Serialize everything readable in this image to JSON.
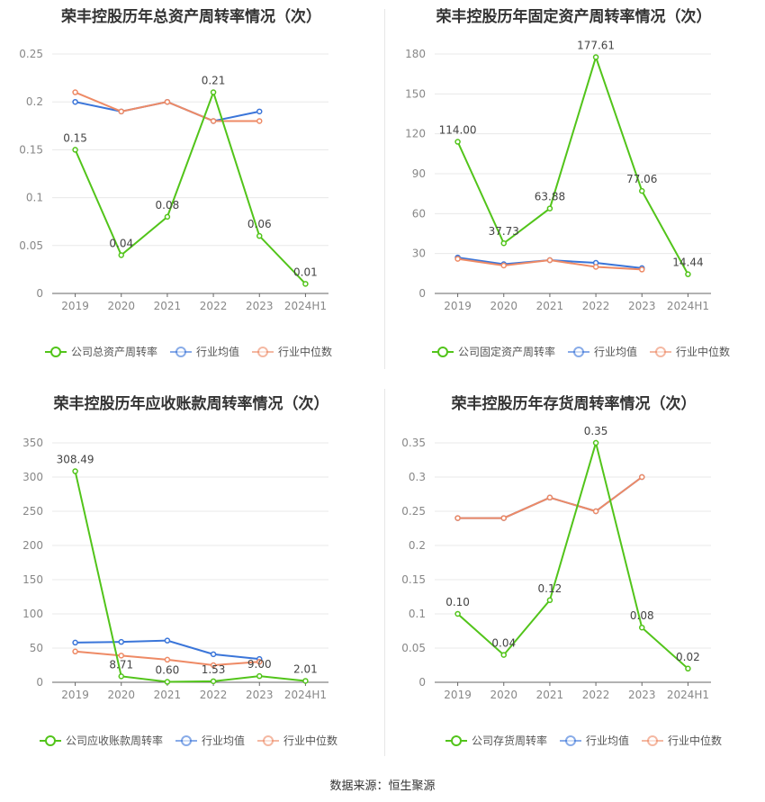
{
  "source_label": "数据来源：恒生聚源",
  "colors": {
    "company": "#52c41a",
    "avg": "#3a75d9",
    "median": "#ee8a65",
    "grid": "#e8e8e8",
    "axis": "#888888"
  },
  "chart_data": [
    {
      "type": "line",
      "title": "荣丰控股历年总资产周转率情况（次）",
      "categories": [
        "2019",
        "2020",
        "2021",
        "2022",
        "2023",
        "2024H1"
      ],
      "yticks": [
        "0",
        "0.05",
        "0.1",
        "0.15",
        "0.2",
        "0.25"
      ],
      "ylim": [
        0,
        0.25
      ],
      "series": [
        {
          "name": "公司总资产周转率",
          "values": [
            0.15,
            0.04,
            0.08,
            0.21,
            0.06,
            0.01
          ],
          "labels": [
            "0.15",
            "0.04",
            "0.08",
            "0.21",
            "0.06",
            "0.01"
          ]
        },
        {
          "name": "行业均值",
          "values": [
            0.2,
            0.19,
            0.2,
            0.18,
            0.19,
            null
          ]
        },
        {
          "name": "行业中位数",
          "values": [
            0.21,
            0.19,
            0.2,
            0.18,
            0.18,
            null
          ]
        }
      ],
      "legend": "bottom"
    },
    {
      "type": "line",
      "title": "荣丰控股历年固定资产周转率情况（次）",
      "categories": [
        "2019",
        "2020",
        "2021",
        "2022",
        "2023",
        "2024H1"
      ],
      "yticks": [
        "0",
        "30",
        "60",
        "90",
        "120",
        "150",
        "180"
      ],
      "ylim": [
        0,
        180
      ],
      "series": [
        {
          "name": "公司固定资产周转率",
          "values": [
            114.0,
            37.73,
            63.88,
            177.61,
            77.06,
            14.44
          ],
          "labels": [
            "114.00",
            "37.73",
            "63.88",
            "177.61",
            "77.06",
            "14.44"
          ]
        },
        {
          "name": "行业均值",
          "values": [
            27,
            22,
            25,
            23,
            19,
            null
          ]
        },
        {
          "name": "行业中位数",
          "values": [
            26,
            21,
            25,
            20,
            18,
            null
          ]
        }
      ],
      "legend": "bottom"
    },
    {
      "type": "line",
      "title": "荣丰控股历年应收账款周转率情况（次）",
      "categories": [
        "2019",
        "2020",
        "2021",
        "2022",
        "2023",
        "2024H1"
      ],
      "yticks": [
        "0",
        "50",
        "100",
        "150",
        "200",
        "250",
        "300",
        "350"
      ],
      "ylim": [
        0,
        350
      ],
      "series": [
        {
          "name": "公司应收账款周转率",
          "values": [
            308.49,
            8.71,
            0.6,
            1.53,
            9.0,
            2.01
          ],
          "labels": [
            "308.49",
            "8.71",
            "0.60",
            "1.53",
            "9.00",
            "2.01"
          ]
        },
        {
          "name": "行业均值",
          "values": [
            58,
            59,
            61,
            41,
            34,
            null
          ]
        },
        {
          "name": "行业中位数",
          "values": [
            45,
            39,
            33,
            25,
            30,
            null
          ]
        }
      ],
      "legend": "bottom"
    },
    {
      "type": "line",
      "title": "荣丰控股历年存货周转率情况（次）",
      "categories": [
        "2019",
        "2020",
        "2021",
        "2022",
        "2023",
        "2024H1"
      ],
      "yticks": [
        "0",
        "0.05",
        "0.1",
        "0.15",
        "0.2",
        "0.25",
        "0.3",
        "0.35"
      ],
      "ylim": [
        0,
        0.35
      ],
      "series": [
        {
          "name": "公司存货周转率",
          "values": [
            0.1,
            0.04,
            0.12,
            0.35,
            0.08,
            0.02
          ],
          "labels": [
            "0.10",
            "0.04",
            "0.12",
            "0.35",
            "0.08",
            "0.02"
          ]
        },
        {
          "name": "行业均值",
          "values": [
            0.24,
            0.24,
            0.27,
            0.25,
            0.3,
            null
          ]
        },
        {
          "name": "行业中位数",
          "values": [
            0.24,
            0.24,
            0.27,
            0.25,
            0.3,
            null
          ]
        }
      ],
      "legend": "bottom"
    }
  ]
}
